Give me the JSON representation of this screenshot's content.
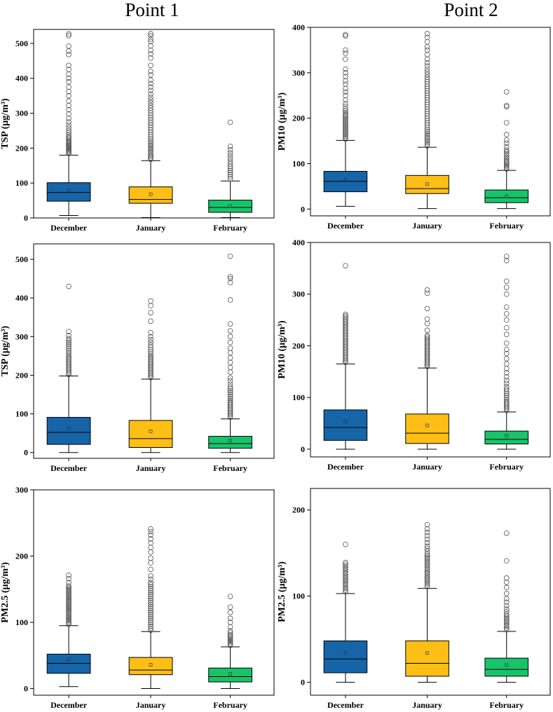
{
  "column_titles": [
    "Point 1",
    "Point 2"
  ],
  "colors": {
    "December": "#1565a8",
    "January": "#fdbf16",
    "February": "#19c36a",
    "outlier": "#555555",
    "axis": "#000000"
  },
  "chart_data": [
    {
      "type": "box",
      "column": "Point 1",
      "ylabel": "TSP (μg/m³)",
      "ylim": [
        0,
        540
      ],
      "yticks": [
        0,
        100,
        200,
        300,
        400,
        500
      ],
      "categories": [
        "December",
        "January",
        "February"
      ],
      "boxes": [
        {
          "category": "December",
          "whisker_low": 7,
          "q1": 48,
          "median": 73,
          "q3": 101,
          "whisker_high": 180,
          "mean": 78,
          "outliers": [
            185,
            188,
            191,
            194,
            197,
            200,
            203,
            206,
            209,
            212,
            215,
            218,
            221,
            225,
            229,
            233,
            238,
            244,
            250,
            258,
            266,
            275,
            285,
            298,
            310,
            322,
            335,
            350,
            362,
            375,
            390,
            400,
            412,
            425,
            437,
            468,
            478,
            492,
            522,
            527
          ]
        },
        {
          "category": "January",
          "whisker_low": 1,
          "q1": 42,
          "median": 53,
          "q3": 89,
          "whisker_high": 164,
          "mean": 68,
          "outliers": [
            168,
            172,
            176,
            180,
            185,
            190,
            195,
            200,
            205,
            210,
            215,
            220,
            226,
            232,
            238,
            245,
            252,
            259,
            266,
            273,
            280,
            287,
            294,
            301,
            308,
            315,
            322,
            330,
            338,
            346,
            355,
            365,
            375,
            385,
            395,
            410,
            420,
            437,
            458,
            470,
            480,
            493,
            505,
            512,
            522,
            528
          ]
        },
        {
          "category": "February",
          "whisker_low": 1,
          "q1": 16,
          "median": 30,
          "q3": 51,
          "whisker_high": 106,
          "mean": 34,
          "outliers": [
            112,
            118,
            124,
            130,
            136,
            142,
            148,
            155,
            162,
            170,
            178,
            186,
            195,
            205,
            274
          ]
        }
      ]
    },
    {
      "type": "box",
      "column": "Point 2",
      "ylabel": "PM10 (μg/m³)",
      "ylim": [
        -15,
        400
      ],
      "yticks": [
        0,
        100,
        200,
        300,
        400
      ],
      "categories": [
        "December",
        "January",
        "February"
      ],
      "boxes": [
        {
          "category": "December",
          "whisker_low": 6,
          "q1": 38,
          "median": 61,
          "q3": 83,
          "whisker_high": 151,
          "mean": 65,
          "outliers": [
            154,
            157,
            160,
            163,
            166,
            169,
            172,
            175,
            178,
            181,
            184,
            187,
            190,
            193,
            196,
            199,
            202,
            205,
            208,
            212,
            216,
            220,
            226,
            232,
            240,
            250,
            258,
            265,
            275,
            282,
            292,
            300,
            308,
            330,
            343,
            350,
            381,
            384
          ]
        },
        {
          "category": "January",
          "whisker_low": 1,
          "q1": 34,
          "median": 45,
          "q3": 74,
          "whisker_high": 136,
          "mean": 55,
          "outliers": [
            139,
            143,
            147,
            151,
            155,
            159,
            163,
            167,
            171,
            175,
            180,
            185,
            190,
            195,
            200,
            205,
            210,
            215,
            220,
            225,
            230,
            235,
            240,
            245,
            250,
            255,
            260,
            265,
            270,
            275,
            280,
            285,
            290,
            296,
            302,
            308,
            315,
            322,
            330,
            340,
            350,
            357,
            368,
            378,
            386
          ]
        },
        {
          "category": "February",
          "whisker_low": 1,
          "q1": 14,
          "median": 25,
          "q3": 42,
          "whisker_high": 85,
          "mean": 28,
          "outliers": [
            88,
            91,
            94,
            97,
            100,
            103,
            106,
            110,
            114,
            118,
            122,
            126,
            130,
            137,
            145,
            152,
            164,
            190,
            225,
            228,
            258
          ]
        }
      ]
    },
    {
      "type": "box",
      "column": "Point 1",
      "ylabel": "TSP (μg/m³)",
      "ylim": [
        -15,
        540
      ],
      "yticks": [
        0,
        100,
        200,
        300,
        400,
        500
      ],
      "categories": [
        "December",
        "January",
        "February"
      ],
      "boxes": [
        {
          "category": "December",
          "whisker_low": 0,
          "q1": 21,
          "median": 52,
          "q3": 91,
          "whisker_high": 198,
          "mean": 63,
          "outliers": [
            202,
            206,
            210,
            214,
            218,
            222,
            226,
            230,
            234,
            238,
            242,
            246,
            250,
            255,
            260,
            265,
            270,
            275,
            280,
            285,
            290,
            295,
            303,
            313,
            430
          ]
        },
        {
          "category": "January",
          "whisker_low": 0,
          "q1": 13,
          "median": 36,
          "q3": 83,
          "whisker_high": 190,
          "mean": 55,
          "outliers": [
            194,
            198,
            202,
            206,
            210,
            214,
            218,
            222,
            226,
            230,
            234,
            238,
            242,
            246,
            250,
            255,
            260,
            266,
            272,
            278,
            285,
            292,
            300,
            310,
            340,
            362,
            380,
            392
          ]
        },
        {
          "category": "February",
          "whisker_low": 0,
          "q1": 11,
          "median": 23,
          "q3": 42,
          "whisker_high": 87,
          "mean": 31,
          "outliers": [
            91,
            95,
            99,
            103,
            107,
            111,
            115,
            119,
            123,
            127,
            131,
            135,
            140,
            145,
            150,
            155,
            160,
            165,
            170,
            177,
            185,
            193,
            208,
            220,
            233,
            245,
            258,
            270,
            285,
            300,
            315,
            333,
            395,
            440,
            450,
            455,
            508
          ]
        }
      ]
    },
    {
      "type": "box",
      "column": "Point 2",
      "ylabel": "PM10 (μg/m³)",
      "ylim": [
        -15,
        400
      ],
      "yticks": [
        0,
        100,
        200,
        300,
        400
      ],
      "categories": [
        "December",
        "January",
        "February"
      ],
      "boxes": [
        {
          "category": "December",
          "whisker_low": 0,
          "q1": 17,
          "median": 42,
          "q3": 76,
          "whisker_high": 165,
          "mean": 54,
          "outliers": [
            168,
            171,
            174,
            177,
            180,
            183,
            186,
            189,
            192,
            195,
            198,
            201,
            204,
            207,
            210,
            213,
            216,
            219,
            222,
            225,
            228,
            231,
            234,
            237,
            240,
            243,
            246,
            249,
            252,
            255,
            258,
            261,
            355
          ]
        },
        {
          "category": "January",
          "whisker_low": 0,
          "q1": 11,
          "median": 31,
          "q3": 68,
          "whisker_high": 157,
          "mean": 46,
          "outliers": [
            160,
            163,
            166,
            169,
            172,
            175,
            178,
            181,
            184,
            187,
            190,
            193,
            196,
            199,
            202,
            205,
            208,
            211,
            214,
            217,
            220,
            230,
            243,
            252,
            272,
            302,
            308
          ]
        },
        {
          "category": "February",
          "whisker_low": 0,
          "q1": 10,
          "median": 19,
          "q3": 35,
          "whisker_high": 72,
          "mean": 26,
          "outliers": [
            75,
            78,
            81,
            84,
            87,
            90,
            93,
            96,
            100,
            104,
            108,
            112,
            116,
            121,
            127,
            133,
            140,
            148,
            156,
            165,
            175,
            185,
            193,
            205,
            222,
            235,
            250,
            262,
            275,
            300,
            313,
            325,
            365,
            373
          ]
        }
      ]
    },
    {
      "type": "box",
      "column": "Point 1",
      "ylabel": "PM2.5 (μg/m³)",
      "ylim": [
        -10,
        300
      ],
      "yticks": [
        0,
        100,
        200,
        300
      ],
      "categories": [
        "December",
        "January",
        "February"
      ],
      "boxes": [
        {
          "category": "December",
          "whisker_low": 3,
          "q1": 23,
          "median": 38,
          "q3": 52,
          "whisker_high": 95,
          "mean": 44,
          "outliers": [
            97,
            99,
            101,
            103,
            105,
            107,
            109,
            111,
            113,
            115,
            117,
            119,
            121,
            123,
            125,
            127,
            129,
            131,
            133,
            135,
            137,
            139,
            141,
            143,
            145,
            147,
            149,
            151,
            153,
            155,
            160,
            166,
            171
          ]
        },
        {
          "category": "January",
          "whisker_low": 0,
          "q1": 21,
          "median": 28,
          "q3": 47,
          "whisker_high": 86,
          "mean": 36,
          "outliers": [
            88,
            91,
            94,
            97,
            100,
            103,
            106,
            109,
            112,
            115,
            118,
            121,
            124,
            127,
            130,
            133,
            136,
            139,
            142,
            145,
            148,
            151,
            154,
            157,
            160,
            165,
            170,
            180,
            190,
            197,
            206,
            213,
            220,
            226,
            232,
            237,
            241
          ]
        },
        {
          "category": "February",
          "whisker_low": 0,
          "q1": 10,
          "median": 18,
          "q3": 31,
          "whisker_high": 63,
          "mean": 22,
          "outliers": [
            65,
            67,
            69,
            71,
            73,
            75,
            77,
            79,
            81,
            84,
            87,
            93,
            100,
            106,
            115,
            123,
            139
          ]
        }
      ]
    },
    {
      "type": "box",
      "column": "Point 2",
      "ylabel": "PM2.5 (μg/m³)",
      "ylim": [
        -15,
        225
      ],
      "yticks": [
        0,
        100,
        200
      ],
      "categories": [
        "December",
        "January",
        "February"
      ],
      "boxes": [
        {
          "category": "December",
          "whisker_low": 0,
          "q1": 11,
          "median": 27,
          "q3": 48,
          "whisker_high": 103,
          "mean": 34,
          "outliers": [
            105,
            107,
            109,
            111,
            113,
            115,
            117,
            119,
            121,
            123,
            125,
            127,
            129,
            131,
            133,
            135,
            137,
            139,
            160
          ]
        },
        {
          "category": "January",
          "whisker_low": 0,
          "q1": 7,
          "median": 22,
          "q3": 48,
          "whisker_high": 109,
          "mean": 34,
          "outliers": [
            111,
            113,
            115,
            117,
            119,
            121,
            123,
            125,
            127,
            129,
            131,
            133,
            135,
            137,
            139,
            141,
            143,
            145,
            147,
            149,
            152,
            155,
            158,
            162,
            166,
            170,
            174,
            178,
            183
          ]
        },
        {
          "category": "February",
          "whisker_low": 0,
          "q1": 7,
          "median": 15,
          "q3": 28,
          "whisker_high": 59,
          "mean": 20,
          "outliers": [
            61,
            63,
            65,
            67,
            69,
            71,
            73,
            75,
            77,
            79,
            82,
            85,
            89,
            93,
            97,
            103,
            110,
            116,
            121,
            141,
            173
          ]
        }
      ]
    }
  ]
}
